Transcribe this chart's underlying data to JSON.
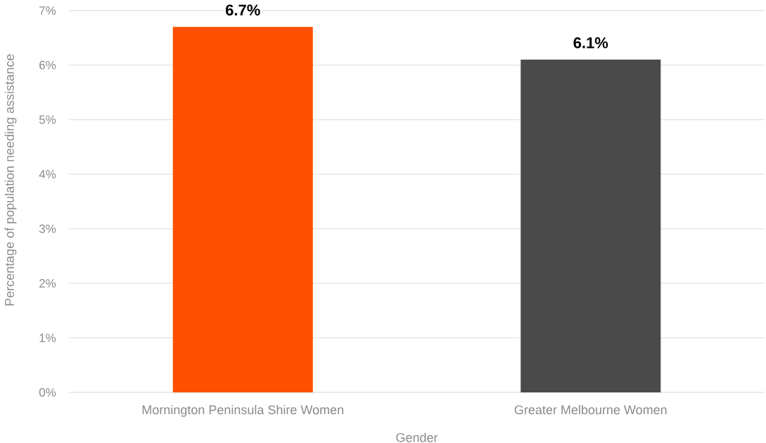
{
  "chart_data": {
    "type": "bar",
    "xlabel": "Gender",
    "ylabel": "Percentage of population needing assistance",
    "categories": [
      "Mornington Peninsula Shire Women",
      "Greater Melbourne Women"
    ],
    "values": [
      6.7,
      6.1
    ],
    "colors": [
      "#ff5000",
      "#4a4a4a"
    ],
    "value_labels": [
      "6.7%",
      "6.1%"
    ],
    "ylim": [
      0,
      7
    ],
    "yticks": [
      {
        "value": 0,
        "label": "0%"
      },
      {
        "value": 1,
        "label": "1%"
      },
      {
        "value": 2,
        "label": "2%"
      },
      {
        "value": 3,
        "label": "3%"
      },
      {
        "value": 4,
        "label": "4%"
      },
      {
        "value": 5,
        "label": "5%"
      },
      {
        "value": 6,
        "label": "6%"
      },
      {
        "value": 7,
        "label": "7%"
      }
    ],
    "grid": "y"
  }
}
